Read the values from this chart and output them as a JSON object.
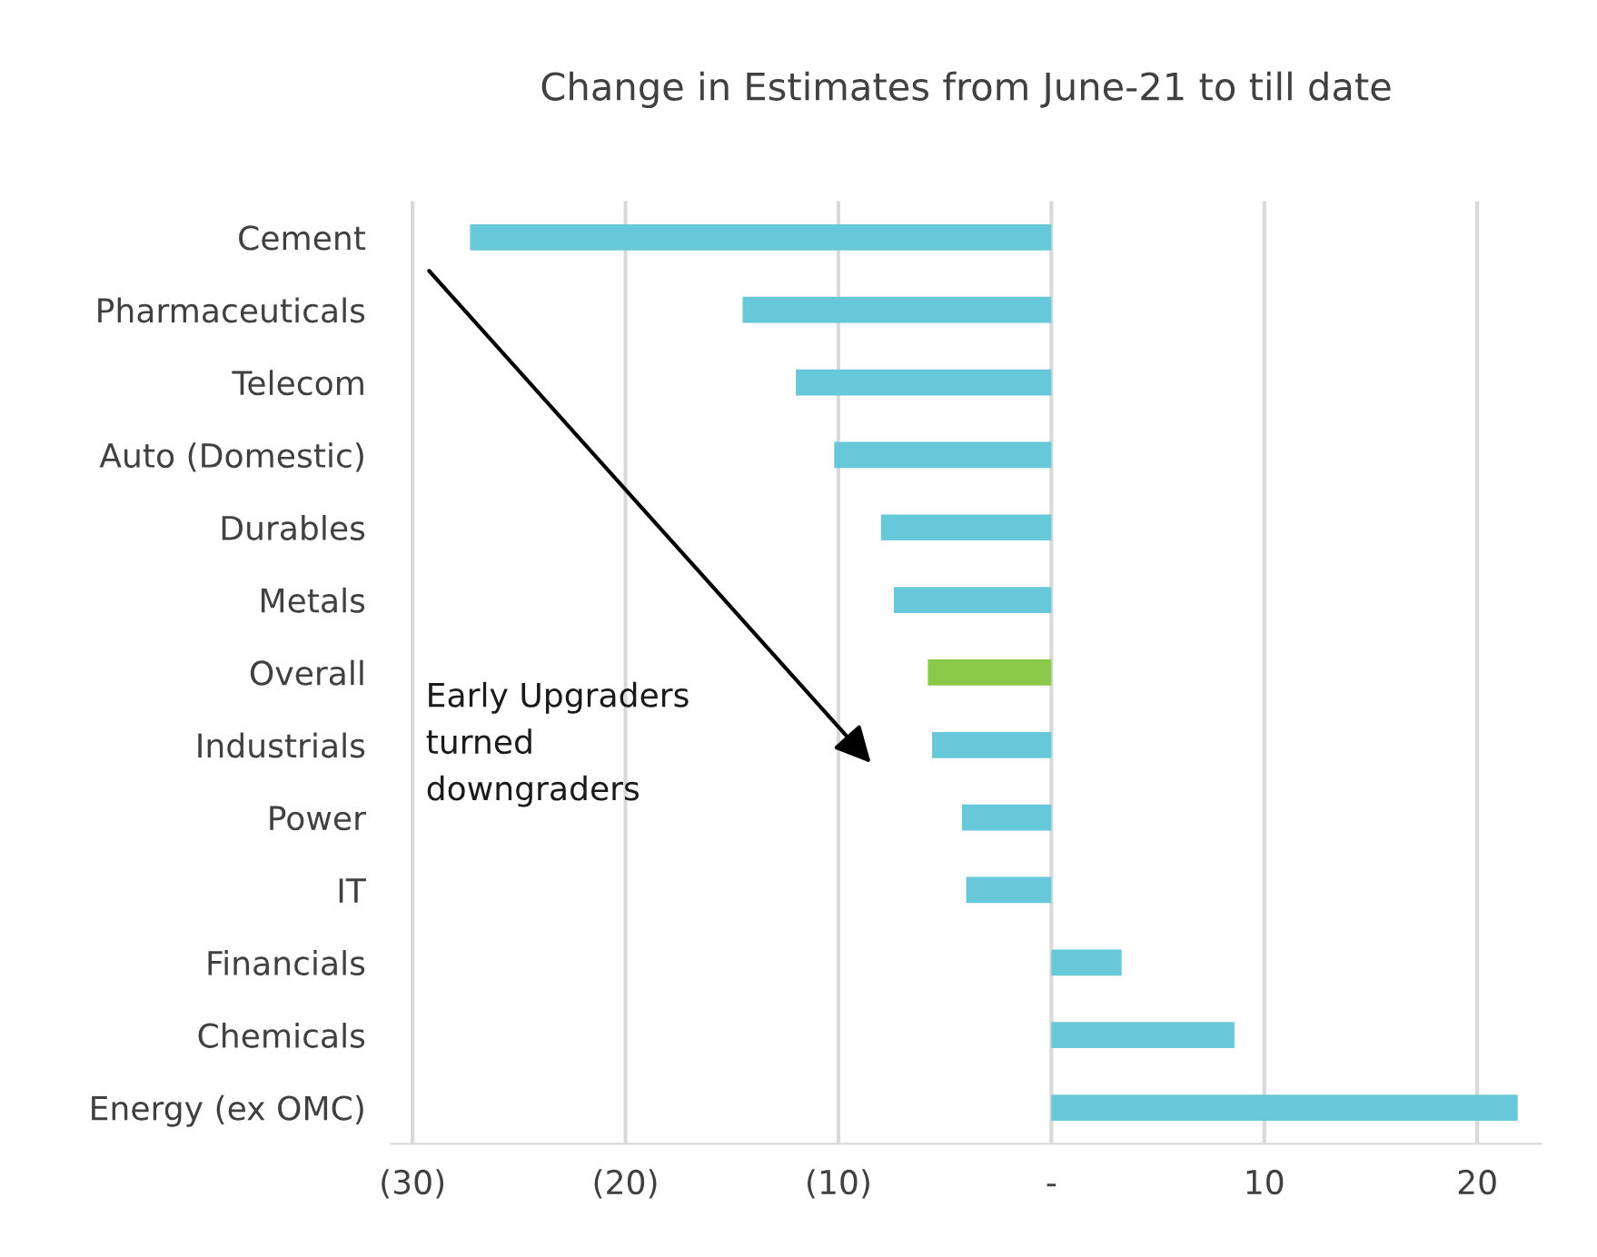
{
  "chart_data": {
    "type": "bar",
    "orientation": "horizontal",
    "title": "Change in Estimates from June-21 to till date",
    "categories": [
      "Cement",
      "Pharmaceuticals",
      "Telecom",
      "Auto (Domestic)",
      "Durables",
      "Metals",
      "Overall",
      "Industrials",
      "Power",
      "IT",
      "Financials",
      "Chemicals",
      "Energy (ex OMC)"
    ],
    "values": [
      -27.3,
      -14.5,
      -12.0,
      -10.2,
      -8.0,
      -7.4,
      -5.8,
      -5.6,
      -4.2,
      -4.0,
      3.3,
      8.6,
      21.9
    ],
    "colors": [
      "#67c8d9",
      "#67c8d9",
      "#67c8d9",
      "#67c8d9",
      "#67c8d9",
      "#67c8d9",
      "#8bc94a",
      "#67c8d9",
      "#67c8d9",
      "#67c8d9",
      "#67c8d9",
      "#67c8d9",
      "#67c8d9"
    ],
    "xlim": [
      -31,
      23
    ],
    "xticks": [
      {
        "value": -30,
        "label": "(30)"
      },
      {
        "value": -20,
        "label": "(20)"
      },
      {
        "value": -10,
        "label": "(10)"
      },
      {
        "value": 0,
        "label": "-"
      },
      10,
      20
    ],
    "grid": "x",
    "annotations": [
      "Early Upgraders\nturned\ndowngraders"
    ]
  }
}
